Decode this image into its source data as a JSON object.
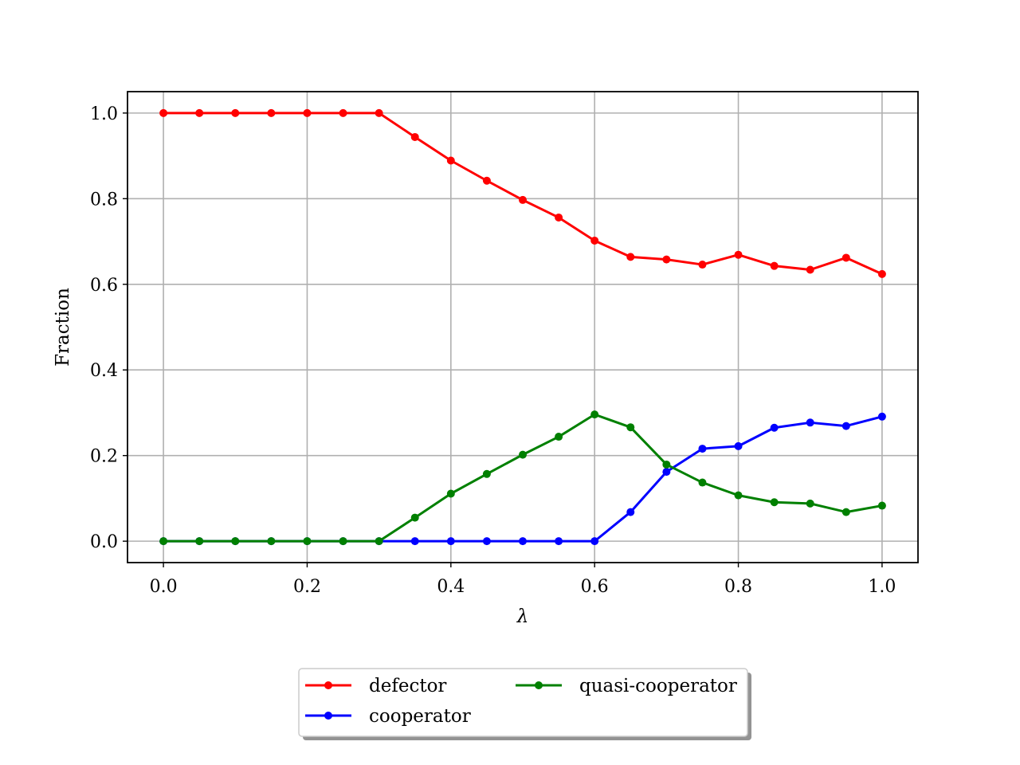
{
  "chart_data": {
    "type": "line",
    "title": "",
    "xlabel": "λ",
    "ylabel": "Fraction",
    "xlim": [
      -0.05,
      1.05
    ],
    "ylim": [
      -0.05,
      1.05
    ],
    "xticks": [
      0.0,
      0.2,
      0.4,
      0.6,
      0.8,
      1.0
    ],
    "xtick_labels": [
      "0.0",
      "0.2",
      "0.4",
      "0.6",
      "0.8",
      "1.0"
    ],
    "yticks": [
      0.0,
      0.2,
      0.4,
      0.6,
      0.8,
      1.0
    ],
    "ytick_labels": [
      "0.0",
      "0.2",
      "0.4",
      "0.6",
      "0.8",
      "1.0"
    ],
    "grid": true,
    "legend_position": "bottom-center, below axes, two columns",
    "x": [
      0.0,
      0.05,
      0.1,
      0.15,
      0.2,
      0.25,
      0.3,
      0.35,
      0.4,
      0.45,
      0.5,
      0.55,
      0.6,
      0.65,
      0.7,
      0.75,
      0.8,
      0.85,
      0.9,
      0.95,
      1.0
    ],
    "series": [
      {
        "name": "defector",
        "color": "#ff0000",
        "values": [
          1.0,
          1.0,
          1.0,
          1.0,
          1.0,
          1.0,
          1.0,
          0.944,
          0.889,
          0.842,
          0.797,
          0.756,
          0.702,
          0.664,
          0.658,
          0.646,
          0.669,
          0.643,
          0.634,
          0.662,
          0.624
        ]
      },
      {
        "name": "cooperator",
        "color": "#0000ff",
        "values": [
          0.0,
          0.0,
          0.0,
          0.0,
          0.0,
          0.0,
          0.0,
          0.0,
          0.0,
          0.0,
          0.0,
          0.0,
          0.0,
          0.068,
          0.162,
          0.216,
          0.222,
          0.265,
          0.277,
          0.269,
          0.291
        ]
      },
      {
        "name": "quasi-cooperator",
        "color": "#008000",
        "values": [
          0.0,
          0.0,
          0.0,
          0.0,
          0.0,
          0.0,
          0.0,
          0.055,
          0.111,
          0.157,
          0.202,
          0.244,
          0.296,
          0.266,
          0.179,
          0.137,
          0.107,
          0.091,
          0.088,
          0.068,
          0.083
        ]
      }
    ],
    "legend_order": [
      "defector",
      "quasi-cooperator",
      "cooperator"
    ]
  }
}
